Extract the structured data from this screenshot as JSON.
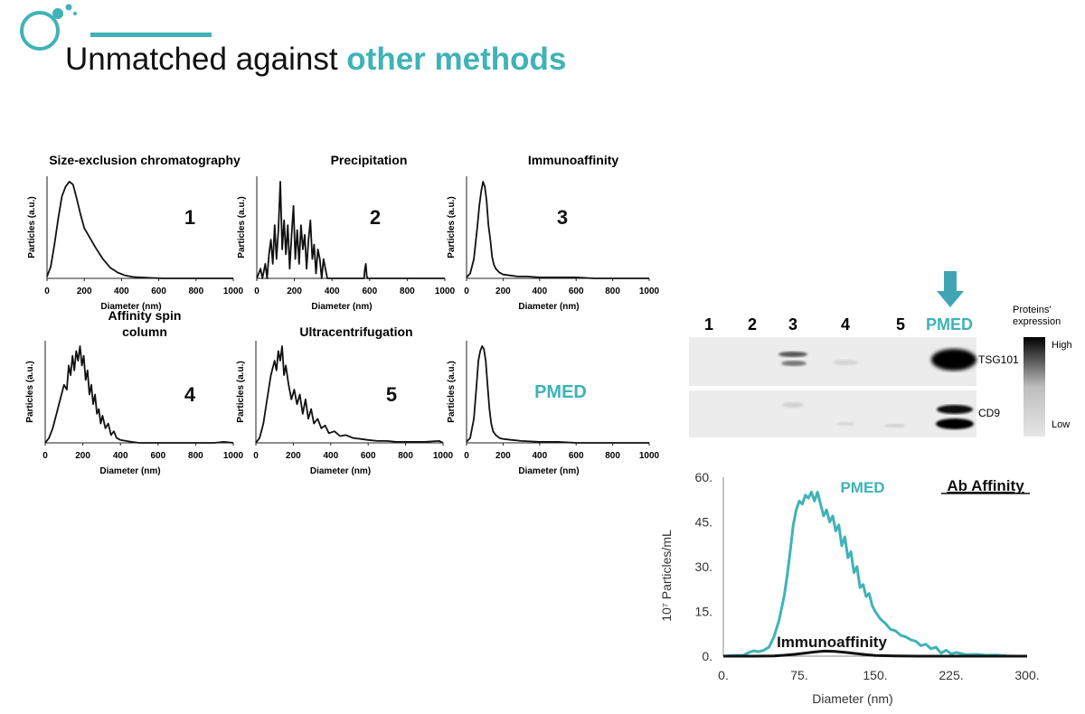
{
  "header": {
    "title_main": "Unmatched against ",
    "title_accent": "other methods"
  },
  "colors": {
    "accent": "#3fb3b6",
    "line": "#111111"
  },
  "small_charts": [
    {
      "id": "sec",
      "title_lines": [
        "Size-exclusion chromatography"
      ],
      "number": "1",
      "number_accent": false,
      "ylabel": "Particles (a.u.)",
      "xlabel": "Diameter (nm)",
      "xticks": [
        "0",
        "200",
        "400",
        "600",
        "800",
        "1000"
      ],
      "series_x": [
        0,
        20,
        40,
        60,
        80,
        100,
        120,
        140,
        160,
        180,
        200,
        230,
        260,
        300,
        340,
        380,
        420,
        460,
        500,
        560,
        620,
        700,
        800,
        900,
        1000
      ],
      "series_y": [
        0.02,
        0.12,
        0.35,
        0.62,
        0.85,
        0.95,
        1.0,
        0.97,
        0.82,
        0.66,
        0.52,
        0.42,
        0.32,
        0.2,
        0.11,
        0.06,
        0.03,
        0.015,
        0.01,
        0.005,
        0,
        0,
        0,
        0,
        0
      ]
    },
    {
      "id": "precip",
      "title_lines": [
        "Precipitation"
      ],
      "number": "2",
      "number_accent": false,
      "ylabel": "Particles (a.u.)",
      "xlabel": "Diameter (nm)",
      "xticks": [
        "0",
        "200",
        "400",
        "600",
        "800",
        "1000"
      ],
      "series_x": [
        0,
        20,
        30,
        45,
        55,
        65,
        75,
        85,
        95,
        105,
        115,
        125,
        135,
        145,
        155,
        165,
        175,
        185,
        195,
        205,
        215,
        225,
        235,
        245,
        255,
        265,
        275,
        285,
        295,
        305,
        315,
        325,
        335,
        345,
        355,
        365,
        375,
        380,
        420,
        500,
        570,
        575,
        580,
        585,
        590,
        600,
        700,
        800,
        1000
      ],
      "series_y": [
        0,
        0.1,
        0.0,
        0.15,
        0.0,
        0.25,
        0.4,
        0.15,
        0.55,
        0.2,
        0.5,
        1.0,
        0.3,
        0.6,
        0.25,
        0.55,
        0.1,
        0.45,
        0.75,
        0.2,
        0.5,
        0.15,
        0.55,
        0.3,
        0.45,
        0.1,
        0.4,
        0.6,
        0.2,
        0.35,
        0.05,
        0.3,
        0.2,
        0.0,
        0.2,
        0.1,
        0.0,
        0,
        0,
        0,
        0,
        0.1,
        0.15,
        0.02,
        0,
        0,
        0,
        0,
        0
      ]
    },
    {
      "id": "immuno",
      "title_lines": [
        "Immunoaffinity"
      ],
      "number": "3",
      "number_accent": false,
      "ylabel": "Particles (a.u.)",
      "xlabel": "Diameter (nm)",
      "xticks": [
        "0",
        "200",
        "400",
        "600",
        "800",
        "1000"
      ],
      "series_x": [
        0,
        20,
        40,
        60,
        70,
        80,
        90,
        100,
        110,
        120,
        130,
        140,
        150,
        160,
        180,
        200,
        240,
        280,
        330,
        400,
        500,
        600,
        700,
        800,
        900,
        1000
      ],
      "series_y": [
        0.01,
        0.05,
        0.2,
        0.55,
        0.75,
        0.9,
        1.0,
        0.95,
        0.8,
        0.55,
        0.4,
        0.22,
        0.14,
        0.1,
        0.06,
        0.04,
        0.03,
        0.02,
        0.02,
        0.01,
        0.01,
        0.01,
        0,
        0,
        0,
        0
      ]
    },
    {
      "id": "spin",
      "title_lines": [
        "Affinity spin",
        "column"
      ],
      "number": "4",
      "number_accent": false,
      "ylabel": "Particles (a.u.)",
      "xlabel": "Diameter (nm)",
      "xticks": [
        "0",
        "200",
        "400",
        "600",
        "800",
        "1000"
      ],
      "series_x": [
        0,
        20,
        40,
        60,
        80,
        100,
        115,
        125,
        135,
        145,
        155,
        165,
        175,
        185,
        195,
        205,
        215,
        225,
        235,
        245,
        255,
        265,
        275,
        285,
        295,
        305,
        320,
        335,
        350,
        365,
        380,
        400,
        430,
        460,
        500,
        600,
        700,
        800,
        900,
        950,
        1000
      ],
      "series_y": [
        0,
        0.05,
        0.15,
        0.3,
        0.45,
        0.6,
        0.55,
        0.8,
        0.7,
        0.9,
        0.75,
        0.95,
        0.85,
        1.0,
        0.8,
        0.9,
        0.65,
        0.75,
        0.5,
        0.6,
        0.4,
        0.5,
        0.3,
        0.35,
        0.2,
        0.28,
        0.15,
        0.2,
        0.08,
        0.12,
        0.05,
        0.03,
        0.02,
        0.01,
        0,
        0,
        0,
        0,
        0,
        0.01,
        0
      ]
    },
    {
      "id": "ultra",
      "title_lines": [
        "Ultracentrifugation"
      ],
      "number": "5",
      "number_accent": false,
      "ylabel": "Particles (a.u.)",
      "xlabel": "Diameter (nm)",
      "xticks": [
        "0",
        "200",
        "400",
        "600",
        "800",
        "1000"
      ],
      "series_x": [
        0,
        20,
        40,
        60,
        80,
        100,
        110,
        120,
        130,
        140,
        150,
        160,
        175,
        190,
        205,
        220,
        235,
        250,
        265,
        280,
        295,
        310,
        330,
        350,
        370,
        390,
        420,
        450,
        480,
        520,
        560,
        600,
        650,
        700,
        750,
        800,
        900,
        980,
        1000
      ],
      "series_y": [
        0,
        0.05,
        0.2,
        0.45,
        0.7,
        0.85,
        0.75,
        0.95,
        0.85,
        1.0,
        0.7,
        0.8,
        0.6,
        0.45,
        0.55,
        0.4,
        0.5,
        0.3,
        0.45,
        0.25,
        0.35,
        0.2,
        0.25,
        0.15,
        0.18,
        0.1,
        0.12,
        0.07,
        0.08,
        0.05,
        0.04,
        0.03,
        0.02,
        0.02,
        0.01,
        0.01,
        0.01,
        0.02,
        0
      ]
    },
    {
      "id": "pmed-small",
      "title_lines": [
        ""
      ],
      "number": "PMED",
      "number_accent": true,
      "ylabel": "Particles (a.u.)",
      "xlabel": "Diameter (nm)",
      "xticks": [
        "0",
        "200",
        "400",
        "600",
        "800",
        "1000"
      ],
      "series_x": [
        0,
        20,
        40,
        55,
        65,
        75,
        85,
        95,
        105,
        115,
        125,
        135,
        145,
        160,
        180,
        200,
        250,
        300,
        400,
        500,
        600,
        700,
        800,
        900,
        1000
      ],
      "series_y": [
        0.01,
        0.05,
        0.25,
        0.6,
        0.85,
        0.95,
        1.0,
        0.97,
        0.85,
        0.6,
        0.35,
        0.2,
        0.12,
        0.08,
        0.05,
        0.04,
        0.03,
        0.02,
        0.01,
        0.01,
        0,
        0,
        0,
        0,
        0
      ]
    }
  ],
  "blot": {
    "lanes": [
      "1",
      "2",
      "3",
      "4",
      "5",
      "PMED"
    ],
    "rows": [
      "TSG101",
      "CD9"
    ],
    "legend_title_lines": [
      "Proteins'",
      "expression"
    ],
    "legend_high": "High",
    "legend_low": "Low"
  },
  "chart_data": {
    "type": "line",
    "title": "Ab Affinity",
    "xlabel": "Diameter (nm)",
    "ylabel": "10⁷ Particles/mL",
    "xlim": [
      0,
      300
    ],
    "ylim": [
      0,
      60
    ],
    "xticks": [
      "0.",
      "75.",
      "150.",
      "225.",
      "300."
    ],
    "yticks": [
      "0.",
      "15.",
      "30.",
      "45.",
      "60."
    ],
    "series": [
      {
        "name": "PMED",
        "x": [
          0,
          10,
          20,
          25,
          30,
          35,
          40,
          45,
          50,
          55,
          60,
          63,
          66,
          69,
          72,
          75,
          78,
          81,
          84,
          87,
          90,
          93,
          96,
          99,
          102,
          105,
          108,
          111,
          114,
          117,
          120,
          123,
          126,
          129,
          132,
          135,
          138,
          141,
          144,
          147,
          150,
          155,
          160,
          165,
          170,
          175,
          180,
          185,
          190,
          195,
          200,
          205,
          210,
          215,
          220,
          225,
          230,
          240,
          250,
          260,
          270,
          280,
          290
        ],
        "y": [
          0,
          0.2,
          0.3,
          1.2,
          1.8,
          1.5,
          2.0,
          3.0,
          6.5,
          12.0,
          20.0,
          27.0,
          35.0,
          44.0,
          49.0,
          52.0,
          51.0,
          54.0,
          53.0,
          55.0,
          52.0,
          55.0,
          51.0,
          47.0,
          49.0,
          45.0,
          47.0,
          42.0,
          44.0,
          37.0,
          40.0,
          33.0,
          35.0,
          28.0,
          30.0,
          23.0,
          24.0,
          20.0,
          21.0,
          17.0,
          15.0,
          12.5,
          11.0,
          9.0,
          8.5,
          7.0,
          6.5,
          5.5,
          5.0,
          3.5,
          4.0,
          2.5,
          3.0,
          1.0,
          2.0,
          0.8,
          1.2,
          0.5,
          0.6,
          0.3,
          0.4,
          0.1,
          0
        ]
      },
      {
        "name": "Immunoaffinity",
        "x": [
          0,
          30,
          50,
          60,
          70,
          80,
          90,
          100,
          110,
          120,
          130,
          140,
          150,
          170,
          200,
          300
        ],
        "y": [
          0,
          0,
          0.1,
          0.3,
          0.6,
          1.0,
          1.4,
          1.7,
          1.6,
          1.3,
          0.9,
          0.5,
          0.2,
          0.05,
          0,
          0
        ]
      }
    ]
  }
}
